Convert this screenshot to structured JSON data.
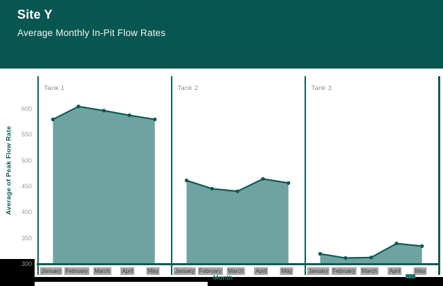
{
  "header": {
    "title": "Site Y",
    "subtitle": "Average Monthly In-Pit Flow Rates",
    "bg_color": "#075651"
  },
  "bottom": {
    "x_axis_title": "Month"
  },
  "chart_data": {
    "type": "area",
    "title": "Average Monthly In-Pit Flow Rates",
    "ylabel": "Average of Peak Flow Rate",
    "xlabel": "Month",
    "ylim": [
      300,
      620
    ],
    "y_ticks": [
      600,
      550,
      500,
      450,
      400,
      350,
      300
    ],
    "grid": false,
    "legend": "none",
    "categories": [
      "January",
      "February",
      "March",
      "April",
      "May"
    ],
    "series": [
      {
        "name": "Tank 1",
        "values": [
          580,
          605,
          597,
          588,
          580
        ]
      },
      {
        "name": "Tank 2",
        "values": [
          462,
          446,
          441,
          465,
          457
        ]
      },
      {
        "name": "Tank 3",
        "values": [
          320,
          312,
          313,
          340,
          335
        ]
      }
    ],
    "colors": {
      "line": "#0E5A55",
      "fill": "#6FA3A2",
      "axis": "#0E5A55",
      "tick_label": "#9B9B9B",
      "panel_title": "#8F8F8F",
      "x_label_text": "#3f3f3f",
      "x_label_bg": "#a6a6a6",
      "header_bg": "#075651"
    }
  }
}
